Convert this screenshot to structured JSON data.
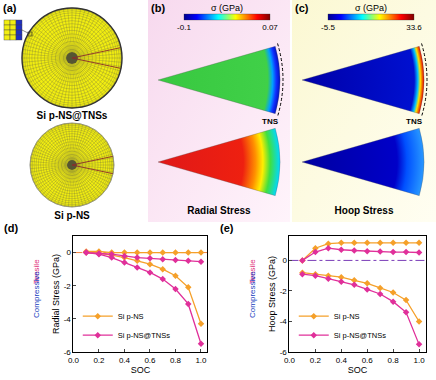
{
  "figure": {
    "panel_a": {
      "label": "(a)",
      "top_label": "Si p-NS@TNSs",
      "bottom_label": "Si p-NS"
    },
    "panel_b": {
      "label": "(b)",
      "title": "Radial Stress",
      "shell_label": "TNS",
      "colorbar": {
        "title": "σ (GPa)",
        "range": [
          -0.1,
          0.07
        ]
      }
    },
    "panel_c": {
      "label": "(c)",
      "title": "Hoop Stress",
      "shell_label": "TNS",
      "colorbar": {
        "title": "σ (GPa)",
        "range": [
          -5.5,
          33.6
        ]
      }
    }
  },
  "chart_data": [
    {
      "type": "line",
      "title": "(d)",
      "xlabel": "SOC",
      "ylabel": "Radial Stress (GPa)",
      "x": [
        0.1,
        0.2,
        0.3,
        0.4,
        0.5,
        0.6,
        0.7,
        0.8,
        0.9,
        1.0
      ],
      "series": [
        {
          "name": "Si p-NS",
          "color": "#f5a02a",
          "values": [
            0.07,
            0.065,
            0,
            0,
            0,
            0,
            0,
            0,
            0,
            0
          ]
        },
        {
          "name": "Si p-NS",
          "color": "#f5a02a",
          "values": [
            0,
            -0.05,
            -0.15,
            -0.3,
            -0.5,
            -0.7,
            -1.0,
            -1.4,
            -2.1,
            -4.3
          ]
        },
        {
          "name": "Si p-NS@TNSs",
          "color": "#e0309a",
          "values": [
            0,
            -0.05,
            -0.1,
            -0.2,
            -0.3,
            -0.35,
            -0.4,
            -0.45,
            -0.5,
            -0.55
          ]
        },
        {
          "name": "Si p-NS@TNSs",
          "color": "#e0309a",
          "values": [
            0,
            -0.1,
            -0.3,
            -0.6,
            -0.9,
            -1.2,
            -1.6,
            -2.2,
            -3.1,
            -5.5
          ]
        }
      ],
      "marker": "diamond",
      "line_style": "solid",
      "reference_lines": [
        {
          "value": 0,
          "color": "#f08040",
          "line_style": "dashdot"
        }
      ],
      "annotations": [
        {
          "text": "Tensile",
          "color": "#e0307a"
        },
        {
          "text": "Compressive",
          "color": "#2040c0"
        }
      ],
      "xlim": [
        0,
        1.05
      ],
      "xticks": [
        {
          "value": 0,
          "label": "0.0"
        },
        {
          "value": 0.2,
          "label": "0.2"
        },
        {
          "value": 0.4,
          "label": "0.4"
        },
        {
          "value": 0.6,
          "label": "0.6"
        },
        {
          "value": 0.8,
          "label": "0.8"
        },
        {
          "value": 1,
          "label": "1.0"
        }
      ],
      "ylim": [
        -6,
        1
      ],
      "yticks": [
        -6,
        -4,
        -2,
        0
      ],
      "grid": false,
      "legend": "lower left"
    },
    {
      "type": "line",
      "title": "(e)",
      "xlabel": "SOC",
      "ylabel": "Hoop Stress (GPa)",
      "x": [
        0.1,
        0.2,
        0.3,
        0.4,
        0.5,
        0.6,
        0.7,
        0.8,
        0.9,
        1.0
      ],
      "series": [
        {
          "name": "Si p-NS",
          "color": "#f5a02a",
          "values": [
            0,
            0.8,
            1.1,
            1.15,
            1.15,
            1.15,
            1.15,
            1.15,
            1.15,
            1.15
          ]
        },
        {
          "name": "Si p-NS",
          "color": "#f5a02a",
          "values": [
            -0.8,
            -0.9,
            -1.0,
            -1.1,
            -1.3,
            -1.5,
            -1.8,
            -2.1,
            -2.6,
            -4.0
          ]
        },
        {
          "name": "Si p-NS@TNSs",
          "color": "#e0309a",
          "values": [
            0,
            0.55,
            0.8,
            0.7,
            0.65,
            0.6,
            0.58,
            0.55,
            0.55,
            0.52
          ]
        },
        {
          "name": "Si p-NS@TNSs",
          "color": "#e0309a",
          "values": [
            -0.9,
            -1.0,
            -1.2,
            -1.4,
            -1.6,
            -1.9,
            -2.2,
            -2.7,
            -3.4,
            -5.5
          ]
        }
      ],
      "marker": "diamond",
      "line_style": "solid",
      "reference_lines": [
        {
          "value": 0,
          "color": "#7a3db8",
          "line_style": "dashdot"
        }
      ],
      "annotations": [
        {
          "text": "Tensile",
          "color": "#e0307a"
        },
        {
          "text": "Compressive",
          "color": "#2040c0"
        }
      ],
      "xlim": [
        0,
        1.05
      ],
      "xticks": [
        {
          "value": 0,
          "label": "0.0"
        },
        {
          "value": 0.2,
          "label": "0.2"
        },
        {
          "value": 0.4,
          "label": "0.4"
        },
        {
          "value": 0.6,
          "label": "0.6"
        },
        {
          "value": 0.8,
          "label": "0.8"
        },
        {
          "value": 1,
          "label": "1.0"
        }
      ],
      "ylim": [
        -6,
        1.6
      ],
      "yticks": [
        -6,
        -4,
        -2,
        0
      ],
      "grid": false,
      "legend": "lower left"
    }
  ]
}
